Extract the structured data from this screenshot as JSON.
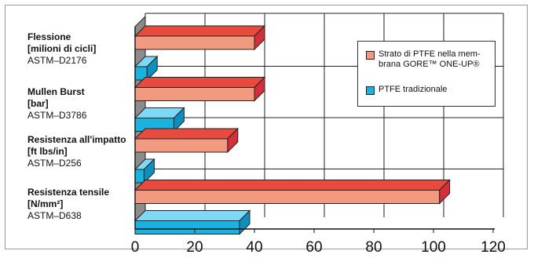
{
  "chart_data": {
    "type": "bar",
    "orientation": "horizontal",
    "categories": [
      {
        "line1": "Flessione",
        "line2": "[milioni di cicli]",
        "line3": "ASTM–D2176"
      },
      {
        "line1": "Mullen Burst",
        "line2": "[bar]",
        "line3": "ASTM–D3786"
      },
      {
        "line1": "Resistenza all'impatto",
        "line2": "[ft lbs/in]",
        "line3": "ASTM–D256"
      },
      {
        "line1": "Resistenza tensile",
        "line2": "[N/mm²]",
        "line3": "ASTM–D638"
      }
    ],
    "series": [
      {
        "name": "Strato di PTFE nella membrana GORE™ ONE-UP®",
        "values": [
          40,
          40,
          31,
          102
        ],
        "color_front": "#f19a80",
        "color_top": "#e84a3e",
        "color_side": "#d4303a"
      },
      {
        "name": "PTFE tradizionale",
        "values": [
          4,
          13,
          3,
          35
        ],
        "color_front": "#1ab3e0",
        "color_top": "#7fd8f5",
        "color_side": "#0f8fbd"
      }
    ],
    "x_ticks": [
      "0",
      "20",
      "40",
      "60",
      "80",
      "100",
      "120"
    ],
    "xlim": [
      0,
      120
    ],
    "grid": true,
    "legend_position": "top-right",
    "style": "3d"
  },
  "legend": {
    "item1_line1": "Strato di PTFE nella mem-",
    "item1_line2": "brana GORE™ ONE-UP®",
    "item2": "PTFE tradizionale"
  }
}
